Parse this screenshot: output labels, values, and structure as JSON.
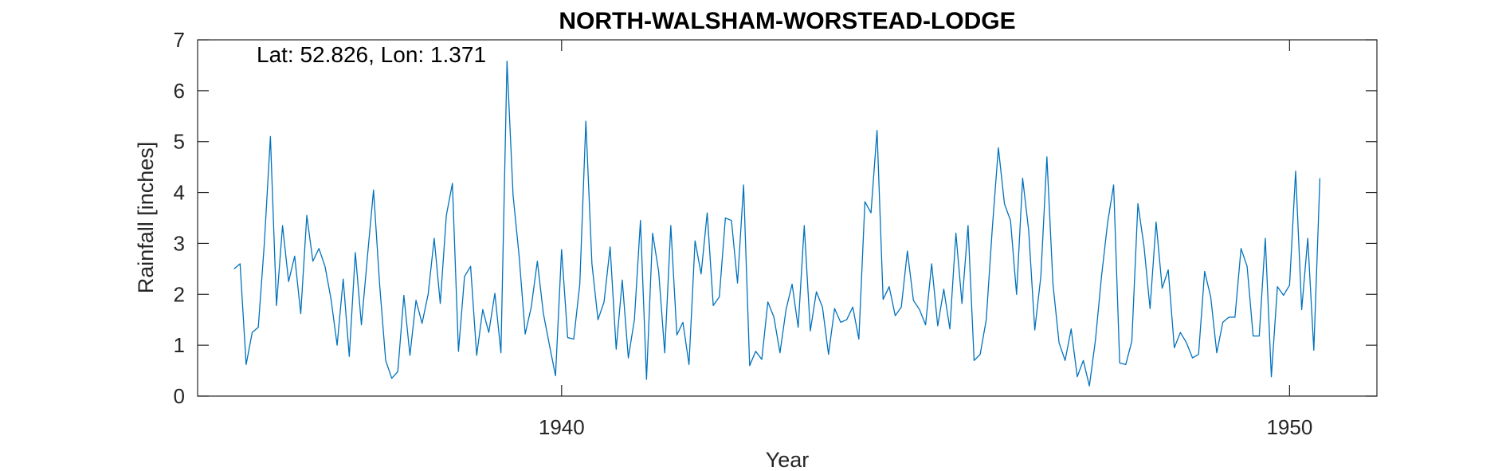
{
  "chart_data": {
    "type": "line",
    "title": "NORTH-WALSHAM-WORSTEAD-LODGE",
    "annotation": "Lat: 52.826, Lon: 1.371",
    "xlabel": "Year",
    "ylabel": "Rainfall [inches]",
    "xlim": [
      1935.0,
      1951.2
    ],
    "ylim": [
      0,
      7
    ],
    "xticks": [
      1940,
      1950
    ],
    "yticks": [
      0,
      1,
      2,
      3,
      4,
      5,
      6,
      7
    ],
    "grid": false,
    "box": true,
    "x_start": 1935.5,
    "x_step_months": 1,
    "series": [
      {
        "color": "#0072BD",
        "values": [
          2.5,
          2.6,
          0.62,
          1.25,
          1.35,
          3.0,
          5.1,
          1.78,
          3.35,
          2.25,
          2.75,
          1.62,
          3.55,
          2.65,
          2.9,
          2.55,
          1.9,
          1.0,
          2.3,
          0.78,
          2.82,
          1.4,
          2.75,
          4.05,
          2.2,
          0.7,
          0.35,
          0.48,
          1.98,
          0.8,
          1.88,
          1.43,
          2.0,
          3.1,
          1.82,
          3.55,
          4.18,
          0.88,
          2.35,
          2.55,
          0.8,
          1.7,
          1.25,
          2.02,
          0.85,
          6.58,
          3.95,
          2.75,
          1.22,
          1.75,
          2.65,
          1.62,
          1.0,
          0.4,
          2.88,
          1.15,
          1.12,
          2.2,
          5.4,
          2.6,
          1.5,
          1.85,
          2.93,
          0.92,
          2.28,
          0.75,
          1.5,
          3.45,
          0.33,
          3.2,
          2.45,
          0.85,
          3.35,
          1.2,
          1.45,
          0.62,
          3.05,
          2.4,
          3.6,
          1.78,
          1.95,
          3.5,
          3.45,
          2.22,
          4.15,
          0.6,
          0.88,
          0.72,
          1.85,
          1.55,
          0.85,
          1.7,
          2.2,
          1.35,
          3.35,
          1.28,
          2.05,
          1.75,
          0.82,
          1.72,
          1.45,
          1.5,
          1.75,
          1.12,
          3.82,
          3.6,
          5.22,
          1.9,
          2.15,
          1.58,
          1.75,
          2.85,
          1.88,
          1.7,
          1.4,
          2.6,
          1.38,
          2.1,
          1.32,
          3.2,
          1.82,
          3.35,
          0.7,
          0.82,
          1.5,
          3.3,
          4.88,
          3.78,
          3.45,
          2.0,
          4.28,
          3.25,
          1.3,
          2.35,
          4.7,
          2.2,
          1.05,
          0.7,
          1.32,
          0.38,
          0.7,
          0.2,
          1.1,
          2.35,
          3.4,
          4.15,
          0.65,
          0.62,
          1.08,
          3.78,
          2.95,
          1.72,
          3.42,
          2.12,
          2.48,
          0.95,
          1.25,
          1.05,
          0.75,
          0.82,
          2.45,
          1.95,
          0.85,
          1.45,
          1.55,
          1.55,
          2.9,
          2.55,
          1.18,
          1.18,
          3.1,
          0.38,
          2.15,
          1.98,
          2.18,
          4.42,
          1.7,
          3.1,
          0.9,
          4.28
        ]
      }
    ]
  }
}
